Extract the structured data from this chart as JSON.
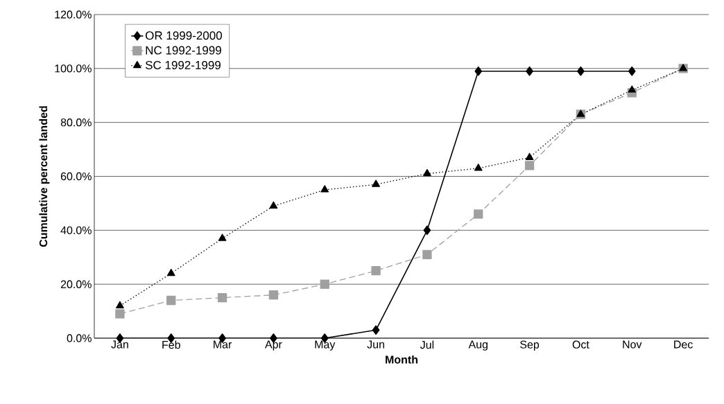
{
  "chart_data": {
    "type": "line",
    "xlabel": "Month",
    "ylabel": "Cumulative percent landed",
    "categories": [
      "Jan",
      "Feb",
      "Mar",
      "Apr",
      "May",
      "Jun",
      "Jul",
      "Aug",
      "Sep",
      "Oct",
      "Nov",
      "Dec"
    ],
    "series": [
      {
        "name": "OR 1999-2000",
        "color": "#000000",
        "marker": "diamond",
        "line_style": "solid",
        "values": [
          0,
          0,
          0,
          0,
          0,
          3,
          40,
          99,
          99,
          99,
          99,
          null
        ]
      },
      {
        "name": "NC 1992-1999",
        "color": "#a0a0a0",
        "marker": "square",
        "line_style": "dashed",
        "values": [
          9,
          14,
          15,
          16,
          20,
          25,
          31,
          46,
          64,
          83,
          91,
          100
        ]
      },
      {
        "name": "SC 1992-1999",
        "color": "#000000",
        "marker": "triangle",
        "line_style": "dotted",
        "values": [
          12,
          24,
          37,
          49,
          55,
          57,
          61,
          63,
          67,
          83,
          92,
          100
        ]
      }
    ],
    "ylim": [
      0,
      120
    ],
    "yticks": [
      {
        "value": 0,
        "label": "0.0%"
      },
      {
        "value": 20,
        "label": "20.0%"
      },
      {
        "value": 40,
        "label": "40.0%"
      },
      {
        "value": 60,
        "label": "60.0%"
      },
      {
        "value": 80,
        "label": "80.0%"
      },
      {
        "value": 100,
        "label": "100.0%"
      },
      {
        "value": 120,
        "label": "120.0%"
      }
    ],
    "grid": "y",
    "legend": "top left"
  }
}
